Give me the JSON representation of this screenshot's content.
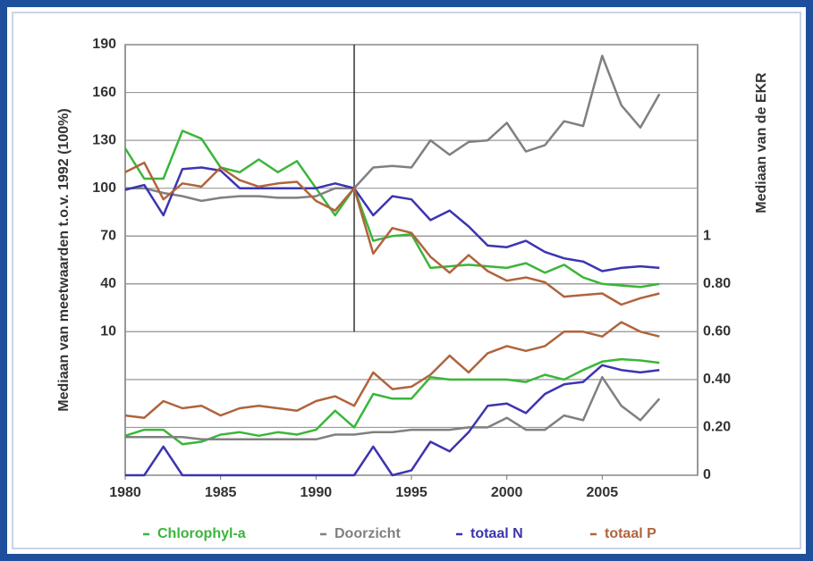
{
  "chart_data": {
    "type": "line",
    "y_label": "Mediaan van meetwaarden t.o.v. 1992 (100%)",
    "y2_label": "Mediaan van de EKR",
    "x": [
      1980,
      1981,
      1982,
      1983,
      1984,
      1985,
      1986,
      1987,
      1988,
      1989,
      1990,
      1991,
      1992,
      1993,
      1994,
      1995,
      1996,
      1997,
      1998,
      1999,
      2000,
      2001,
      2002,
      2003,
      2004,
      2005,
      2006,
      2007,
      2008
    ],
    "xlim": [
      1980,
      2010
    ],
    "xticks": [
      1980,
      1985,
      1990,
      1995,
      2000,
      2005
    ],
    "ylim": [
      -80,
      190
    ],
    "yticks": [
      10,
      40,
      70,
      100,
      130,
      160,
      190
    ],
    "y2lim": [
      0,
      1.8
    ],
    "y2ticks": [
      0,
      {
        "value": 0.2,
        "label": "0.20"
      },
      {
        "value": 0.4,
        "label": "0.40"
      },
      {
        "value": 0.6,
        "label": "0.60"
      },
      {
        "value": 0.8,
        "label": "0.80"
      },
      1
    ],
    "grid": true,
    "vline_x": 1992,
    "series": [
      {
        "name": "Chlorophyl-a",
        "color": "#3cb53a",
        "values": [
          125,
          106,
          106,
          136,
          131,
          113,
          110,
          118,
          110,
          117,
          100,
          83,
          100,
          67,
          70,
          71,
          50,
          51,
          52,
          51,
          50,
          53,
          47,
          52,
          44,
          40,
          39,
          38,
          40
        ]
      },
      {
        "name": "Doorzicht",
        "color": "#808080",
        "values": [
          100,
          100,
          97,
          95,
          92,
          94,
          95,
          95,
          94,
          94,
          95,
          100,
          100,
          113,
          114,
          113,
          130,
          121,
          129,
          130,
          141,
          123,
          127,
          142,
          139,
          183,
          152,
          138,
          159
        ]
      },
      {
        "name": "totaal N",
        "color": "#3c34b0",
        "values": [
          99,
          102,
          83,
          112,
          113,
          111,
          100,
          100,
          100,
          100,
          100,
          103,
          100,
          83,
          95,
          93,
          80,
          86,
          76,
          64,
          63,
          67,
          60,
          56,
          54,
          48,
          50,
          51,
          50
        ]
      },
      {
        "name": "totaal P",
        "color": "#b0643c",
        "values": [
          110,
          116,
          93,
          103,
          101,
          113,
          105,
          101,
          103,
          104,
          92,
          86,
          100,
          59,
          75,
          72,
          57,
          47,
          58,
          48,
          42,
          44,
          41,
          32,
          33,
          34,
          27,
          31,
          34
        ]
      }
    ],
    "series_y2": [
      {
        "axis": "y2",
        "color": "#3cb53a",
        "values": [
          0.165,
          0.19,
          0.19,
          0.13,
          0.14,
          0.17,
          0.18,
          0.165,
          0.18,
          0.17,
          0.19,
          0.27,
          0.2,
          0.34,
          0.32,
          0.32,
          0.41,
          0.4,
          0.4,
          0.4,
          0.4,
          0.39,
          0.42,
          0.4,
          0.44,
          0.475,
          0.485,
          0.48,
          0.47
        ]
      },
      {
        "axis": "y2",
        "color": "#808080",
        "values": [
          0.16,
          0.16,
          0.16,
          0.16,
          0.15,
          0.15,
          0.15,
          0.15,
          0.15,
          0.15,
          0.15,
          0.17,
          0.17,
          0.18,
          0.18,
          0.19,
          0.19,
          0.19,
          0.2,
          0.2,
          0.24,
          0.19,
          0.19,
          0.25,
          0.23,
          0.41,
          0.29,
          0.23,
          0.32
        ]
      },
      {
        "axis": "y2",
        "color": "#3c34b0",
        "values": [
          0,
          0,
          0.12,
          0,
          0,
          0,
          0,
          0,
          0,
          0,
          0,
          0,
          0,
          0.12,
          0,
          0.02,
          0.14,
          0.1,
          0.18,
          0.29,
          0.3,
          0.26,
          0.34,
          0.38,
          0.39,
          0.46,
          0.44,
          0.43,
          0.44
        ]
      },
      {
        "axis": "y2",
        "color": "#b0643c",
        "values": [
          0.25,
          0.24,
          0.31,
          0.28,
          0.29,
          0.25,
          0.28,
          0.29,
          0.28,
          0.27,
          0.31,
          0.33,
          0.29,
          0.43,
          0.36,
          0.37,
          0.42,
          0.5,
          0.43,
          0.51,
          0.54,
          0.52,
          0.54,
          0.6,
          0.6,
          0.58,
          0.64,
          0.6,
          0.58
        ]
      }
    ]
  }
}
